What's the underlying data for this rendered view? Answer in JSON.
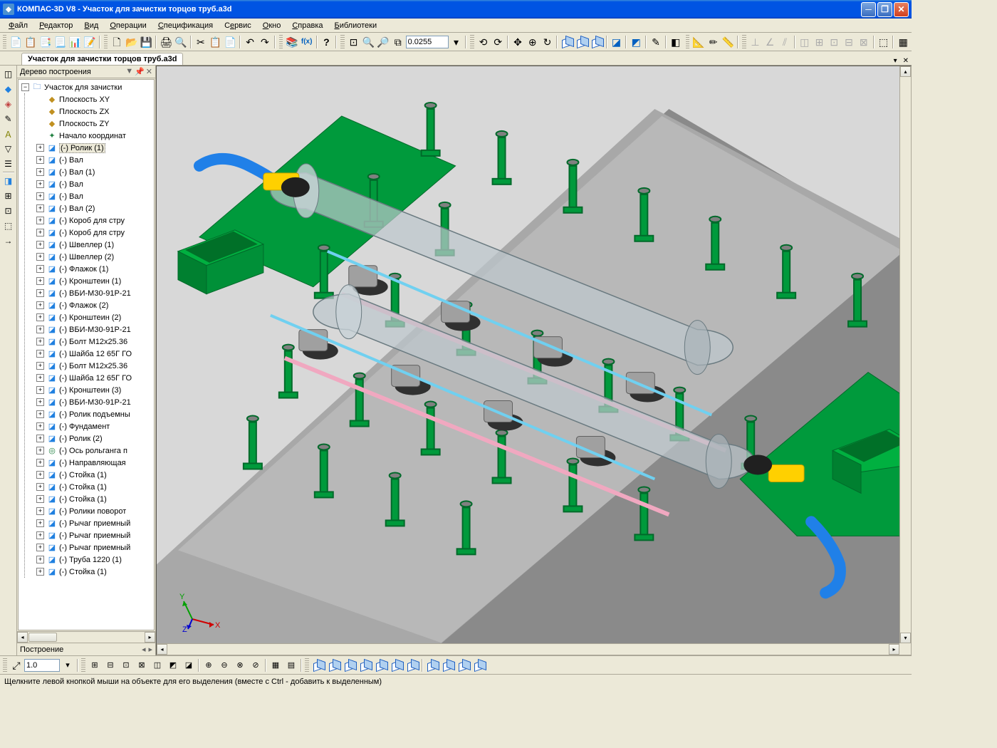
{
  "titlebar": {
    "app": "КОМПАС-3D V8",
    "document": "Участок для зачистки торцов труб.a3d"
  },
  "menubar": [
    "Файл",
    "Редактор",
    "Вид",
    "Операции",
    "Спецификация",
    "Сервис",
    "Окно",
    "Справка",
    "Библиотеки"
  ],
  "toolbar_zoom_value": "0.0255",
  "doc_tab": "Участок для зачистки торцов труб.a3d",
  "tree": {
    "header": "Дерево построения",
    "root": "Участок для зачистки",
    "planes": [
      "Плоскость XY",
      "Плоскость ZX",
      "Плоскость ZY"
    ],
    "origin": "Начало координат",
    "parts": [
      "(-) Ролик (1)",
      "(-) Вал",
      "(-) Вал (1)",
      "(-) Вал",
      "(-) Вал",
      "(-) Вал (2)",
      "(-) Короб для стру",
      "(-) Короб для стру",
      "(-) Швеллер  (1)",
      "(-) Швеллер  (2)",
      "(-) Флажок (1)",
      "(-) Кронштеин (1)",
      "(-) ВБИ-М30-91Р-21",
      "(-) Флажок (2)",
      "(-) Кронштеин (2)",
      "(-) ВБИ-М30-91Р-21",
      "(-) Болт M12x25.36",
      "(-) Шайба 12 65Г ГО",
      "(-) Болт M12x25.36",
      "(-) Шайба 12 65Г ГО",
      "(-) Кронштеин (3)",
      "(-) ВБИ-М30-91Р-21",
      "(-) Ролик подъемны",
      "(-) Фундамент",
      "(-) Ролик (2)",
      "(-) Ось рольганга п",
      "(-) Направляющая",
      "(-) Стойка (1)",
      "(-) Стойка (1)",
      "(-) Стойка (1)",
      "(-) Ролики поворот",
      "(-) Рычаг приемный",
      "(-) Рычаг приемный",
      "(-) Рычаг приемный",
      "(-) Труба 1220 (1)",
      "(-) Стойка (1)"
    ],
    "footer": "Построение"
  },
  "bottom_scale": "1.0",
  "statusbar": "Щелкните левой кнопкой мыши на объекте для его выделения (вместе с Ctrl - добавить к выделенным)",
  "viewport": {
    "bg_color": "#d8d8d8",
    "floor_color": "#909090",
    "floor_top_color": "#b8b8b8",
    "pipe_color": "rgba(190,200,205,0.75)",
    "pipe_stroke": "#6a7a80",
    "green": "#009a3c",
    "dark_green": "#006a2a",
    "blue": "#2080e8",
    "yellow": "#ffd000",
    "gray_metal": "#b0b0b0",
    "pink": "#f0a8c0",
    "cyan": "#70d0f0",
    "black": "#202020"
  }
}
